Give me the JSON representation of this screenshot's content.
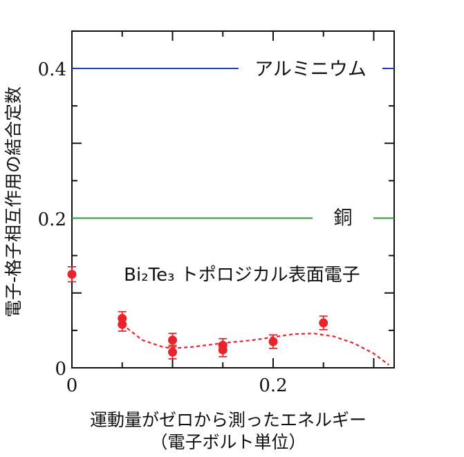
{
  "chart_data": {
    "type": "scatter",
    "title": "",
    "xlabel": "運動量がゼロから測ったエネルギー",
    "xlabel_unit": "（電子ボルト単位）",
    "ylabel": "電子-格子相互作用の結合定数",
    "xlim": [
      0,
      0.32
    ],
    "ylim": [
      0,
      0.45
    ],
    "x_ticks": [
      "0",
      "0.2"
    ],
    "y_ticks": [
      "0",
      "0.2",
      "0.4"
    ],
    "reference_lines": [
      {
        "name": "アルミニウム",
        "y": 0.4,
        "color": "#1f3f9e"
      },
      {
        "name": "銅",
        "y": 0.2,
        "color": "#2a9a3a"
      }
    ],
    "series": [
      {
        "name": "Bi₂Te₃ トポロジカル表面電子",
        "color": "#e8232b",
        "points": [
          {
            "x": 0.0,
            "y": 0.125,
            "err": 0.01
          },
          {
            "x": 0.05,
            "y": 0.066,
            "err": 0.009
          },
          {
            "x": 0.05,
            "y": 0.058,
            "err": 0.009
          },
          {
            "x": 0.1,
            "y": 0.037,
            "err": 0.009
          },
          {
            "x": 0.1,
            "y": 0.021,
            "err": 0.009
          },
          {
            "x": 0.15,
            "y": 0.03,
            "err": 0.009
          },
          {
            "x": 0.15,
            "y": 0.024,
            "err": 0.009
          },
          {
            "x": 0.2,
            "y": 0.035,
            "err": 0.009
          },
          {
            "x": 0.25,
            "y": 0.06,
            "err": 0.009
          }
        ]
      }
    ],
    "fit_curve": {
      "style": "dashed",
      "color": "#e8232b",
      "x": [
        0.05,
        0.07,
        0.09,
        0.1,
        0.12,
        0.15,
        0.18,
        0.2,
        0.22,
        0.24,
        0.26,
        0.28,
        0.3,
        0.315
      ],
      "y": [
        0.058,
        0.037,
        0.028,
        0.026,
        0.028,
        0.033,
        0.037,
        0.041,
        0.045,
        0.046,
        0.042,
        0.033,
        0.019,
        0.004
      ]
    },
    "grid": false,
    "legend": "none"
  }
}
